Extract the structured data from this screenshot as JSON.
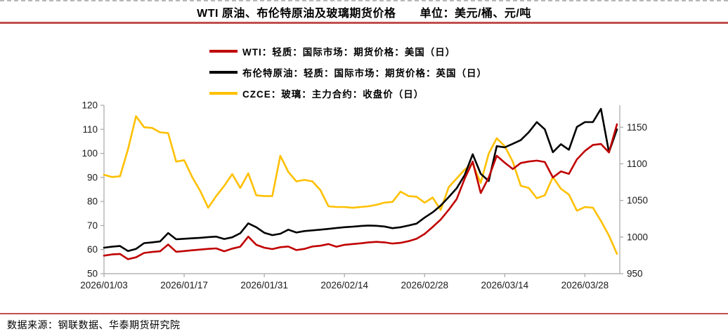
{
  "header": {
    "title_main": "WTI 原油、布伦特原油及玻璃期货价格",
    "title_unit": "单位：美元/桶、元/吨"
  },
  "footer": {
    "source": "数据来源：钢联数据、华泰期货研究院"
  },
  "colors": {
    "accent_rule": "#c0504d",
    "axis": "#a6a6a6",
    "tick_text": "#1a1a1a"
  },
  "chart_data": {
    "type": "line",
    "n_points": 65,
    "x_tick_labels": [
      "2026/01/03",
      "2026/01/17",
      "2026/01/31",
      "2026/02/14",
      "2026/02/28",
      "2026/03/14",
      "2026/03/28"
    ],
    "x_tick_indices": [
      0,
      10,
      20,
      30,
      40,
      50,
      60
    ],
    "axes": {
      "left": {
        "ticks": [
          50,
          60,
          70,
          80,
          90,
          100,
          110,
          120
        ],
        "range": [
          50,
          120
        ]
      },
      "right": {
        "ticks": [
          950,
          1000,
          1050,
          1100,
          1150
        ],
        "range": [
          950,
          1180
        ]
      }
    },
    "grid": false,
    "legend_position": "top-left-stacked",
    "series": [
      {
        "name": "WTI：轻质：国际市场：期货价格：美国（日）",
        "axis": "left",
        "color": "#c00000",
        "values": [
          57.5,
          58.0,
          58.2,
          56.0,
          56.8,
          58.6,
          59.0,
          59.3,
          62.1,
          59.1,
          59.4,
          59.7,
          60.0,
          60.3,
          60.5,
          59.3,
          60.4,
          61.2,
          65.4,
          62.0,
          60.8,
          60.2,
          61.0,
          61.3,
          59.8,
          60.3,
          61.3,
          61.6,
          62.3,
          61.2,
          62.0,
          62.3,
          62.6,
          63.0,
          63.2,
          63.0,
          62.5,
          62.8,
          63.5,
          64.5,
          66.5,
          69.4,
          72.5,
          76.5,
          81.0,
          89.5,
          96.6,
          83.5,
          90.0,
          99.0,
          96.1,
          93.5,
          96.0,
          96.6,
          97.0,
          96.4,
          90.0,
          92.5,
          91.5,
          97.5,
          101.0,
          103.5,
          103.9,
          100.4,
          112.1
        ]
      },
      {
        "name": "布伦特原油：轻质：国际市场：期货价格：英国（日）",
        "axis": "left",
        "color": "#000000",
        "values": [
          60.8,
          61.2,
          61.5,
          59.4,
          60.3,
          62.7,
          63.0,
          63.4,
          66.9,
          64.3,
          64.5,
          64.7,
          64.9,
          65.2,
          65.4,
          64.4,
          65.1,
          66.8,
          70.9,
          69.3,
          67.0,
          66.0,
          66.6,
          68.3,
          67.1,
          67.7,
          68.0,
          68.3,
          68.6,
          69.0,
          69.3,
          69.5,
          69.8,
          70.0,
          69.9,
          69.6,
          68.9,
          69.3,
          70.0,
          70.8,
          73.3,
          75.5,
          78.3,
          81.8,
          85.5,
          91.0,
          99.6,
          91.5,
          88.5,
          103.0,
          102.5,
          104.0,
          105.5,
          108.8,
          113.0,
          110.0,
          100.5,
          103.8,
          101.5,
          111.0,
          113.0,
          113.0,
          118.5,
          100.5,
          110.0
        ]
      },
      {
        "name": "CZCE：玻璃：主力合约：收盘价（日）",
        "axis": "right",
        "color": "#ffc000",
        "values": [
          1085,
          1082,
          1083,
          1120,
          1165,
          1150,
          1149,
          1143,
          1142,
          1103,
          1105,
          1082,
          1063,
          1040,
          1056,
          1070,
          1086,
          1067,
          1087,
          1057,
          1056,
          1056,
          1111,
          1089,
          1076,
          1078,
          1076,
          1064,
          1042,
          1041,
          1041,
          1040,
          1041,
          1042,
          1044,
          1047,
          1048,
          1062,
          1056,
          1055,
          1047,
          1054,
          1037,
          1068,
          1080,
          1092,
          1100,
          1074,
          1114,
          1135,
          1124,
          1103,
          1070,
          1067,
          1053,
          1057,
          1082,
          1066,
          1058,
          1036,
          1041,
          1040,
          1022,
          1002,
          977
        ]
      }
    ]
  }
}
